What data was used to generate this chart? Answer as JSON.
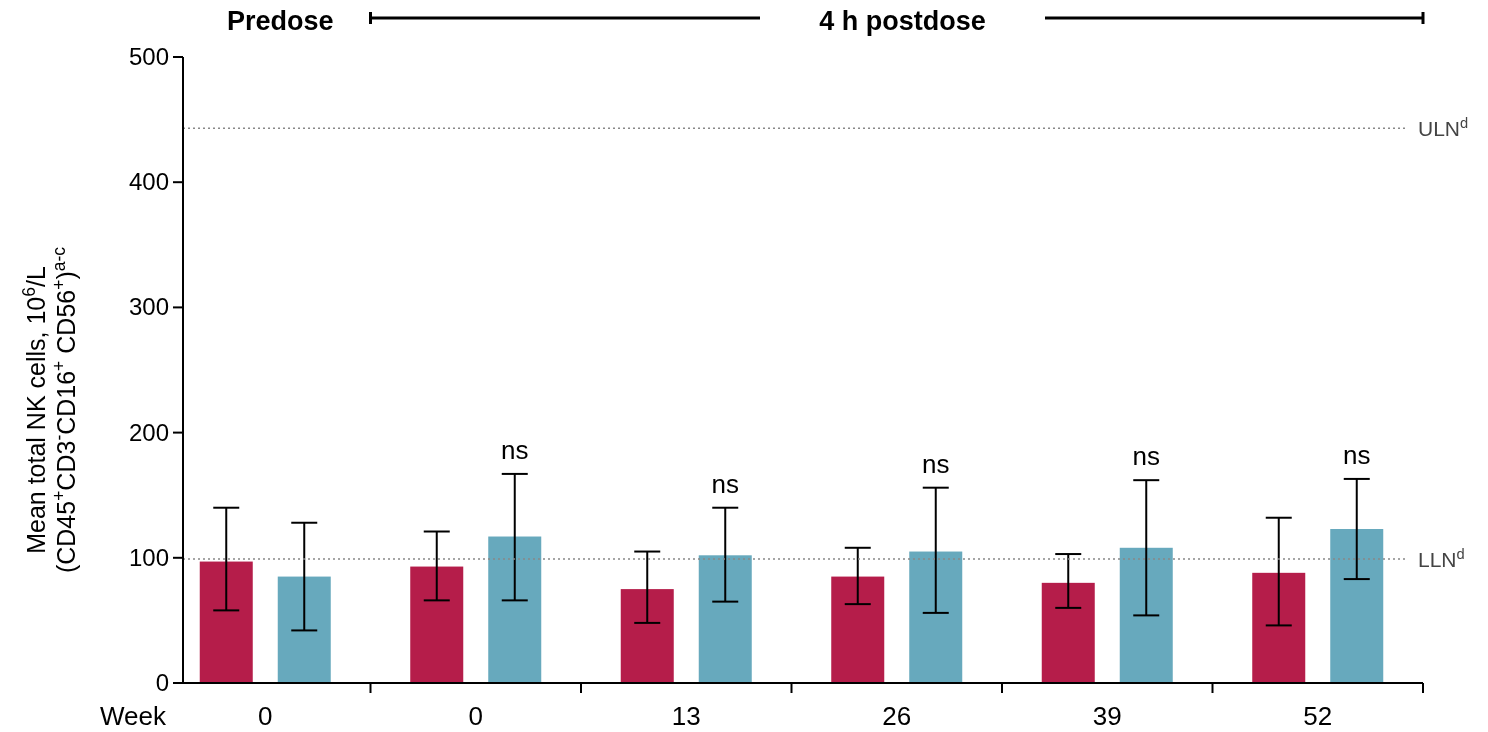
{
  "chart_data": {
    "type": "bar",
    "ylabel": "Mean total NK cells, 10$^{6}$/L\n(CD45$^{+}$CD3$^{-}$CD16$^{+}$ CD56$^{+}$)$^{a-c}$",
    "xlabel": "Week",
    "categories": [
      "0",
      "0",
      "13",
      "26",
      "39",
      "52"
    ],
    "series": [
      {
        "color": "#b51d4a",
        "values": [
          97,
          93,
          75,
          85,
          80,
          88
        ],
        "errors": [
          [
            58,
            140
          ],
          [
            66,
            121
          ],
          [
            48,
            105
          ],
          [
            63,
            108
          ],
          [
            60,
            103
          ],
          [
            46,
            132
          ]
        ]
      },
      {
        "color": "#67a9bd",
        "values": [
          85,
          117,
          102,
          105,
          108,
          123
        ],
        "errors": [
          [
            42,
            128
          ],
          [
            66,
            167
          ],
          [
            65,
            140
          ],
          [
            56,
            156
          ],
          [
            54,
            162
          ],
          [
            83,
            163
          ]
        ]
      }
    ],
    "ylim": [
      0,
      500
    ],
    "yticks": [
      0,
      100,
      200,
      300,
      400,
      500
    ],
    "ref_lines": [
      {
        "axis": "y",
        "value": 443,
        "label": "ULN$^{d}$",
        "color": "#888888",
        "line_style": "dotted"
      },
      {
        "axis": "y",
        "value": 99,
        "label": "LLN$^{d}$",
        "color": "#888888",
        "line_style": "dotted"
      }
    ],
    "annotations": [
      "Predose",
      "4 h postdose",
      "ns",
      "ns",
      "ns",
      "ns",
      "ns"
    ]
  }
}
